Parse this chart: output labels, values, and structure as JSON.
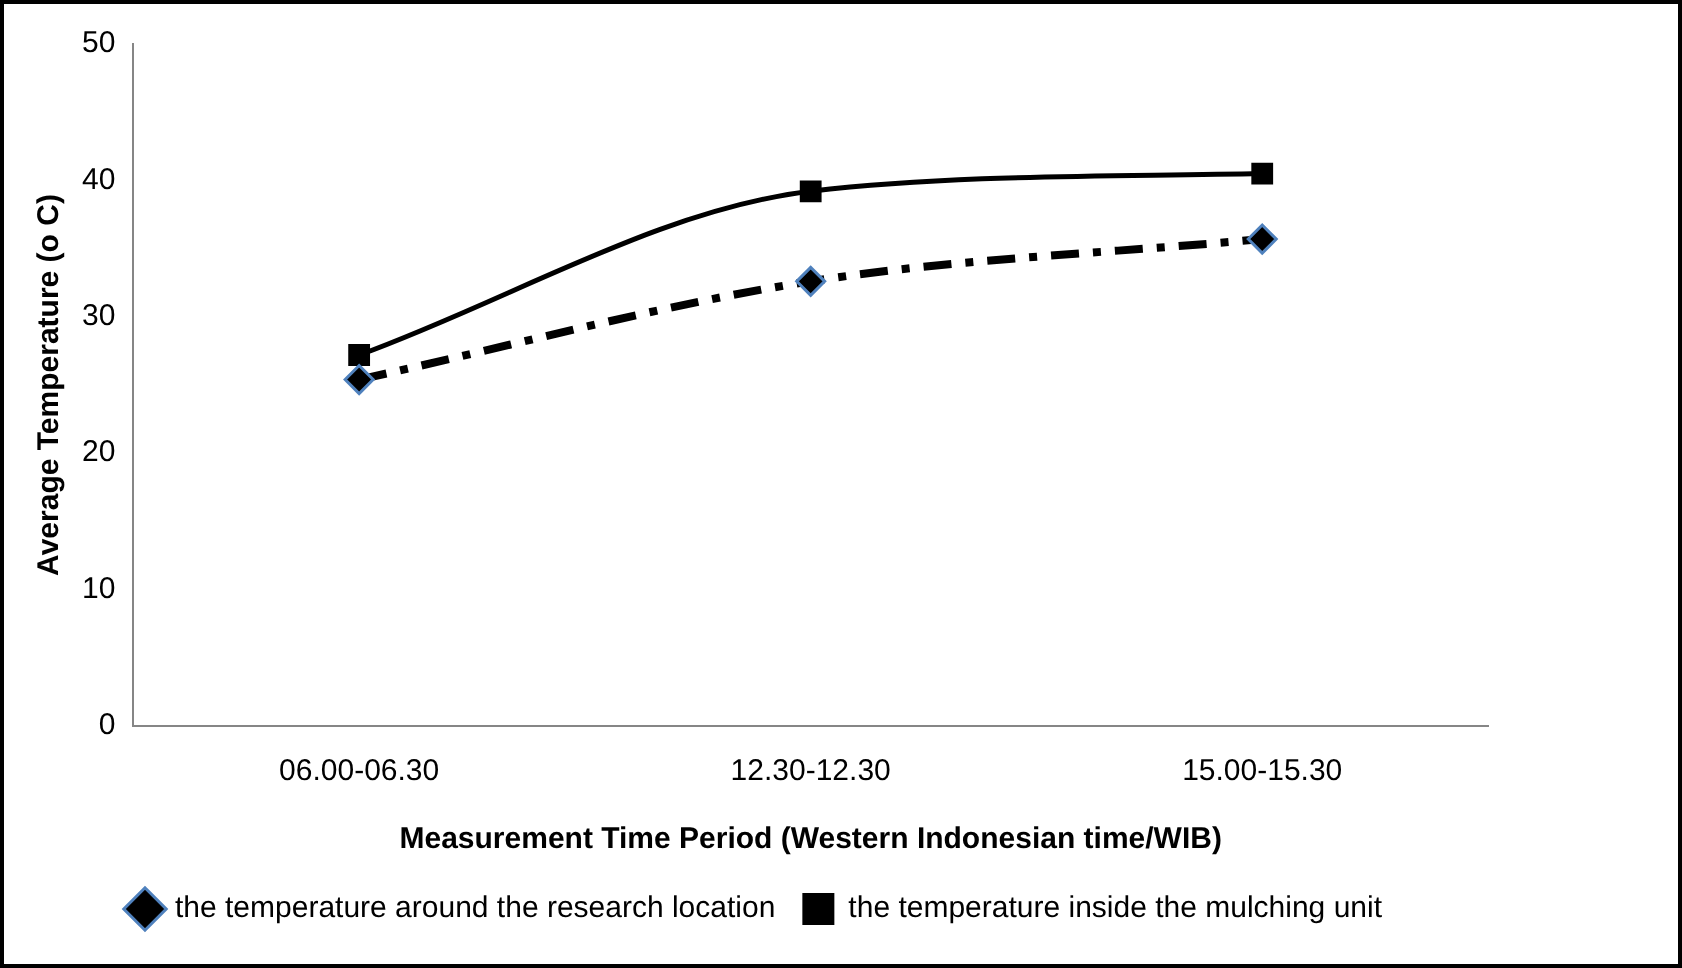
{
  "chart_data": {
    "type": "line",
    "xlabel": "Measurement Time Period (Western Indonesian time/WIB)",
    "ylabel": "Average Temperature (o C)",
    "categories": [
      "06.00-06.30",
      "12.30-12.30",
      "15.00-15.30"
    ],
    "series": [
      {
        "name": "the temperature around the research location",
        "color": "#000000",
        "values": [
          25.4,
          32.6,
          35.7
        ],
        "marker": "diamond",
        "line_style": "dashed"
      },
      {
        "name": "the temperature inside the mulching unit",
        "color": "#000000",
        "values": [
          27.2,
          39.2,
          40.5
        ],
        "marker": "square",
        "line_style": "solid"
      }
    ],
    "ylim": [
      0,
      50
    ],
    "yticks": [
      0,
      10,
      20,
      30,
      40,
      50
    ],
    "grid": false,
    "legend": "bottom"
  }
}
